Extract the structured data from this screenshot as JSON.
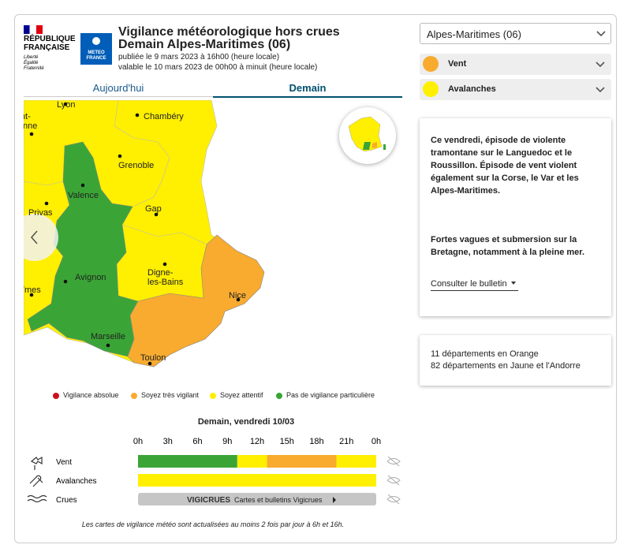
{
  "header": {
    "republique": [
      "RÉPUBLIQUE",
      "FRANÇAISE"
    ],
    "devise": [
      "Liberté",
      "Égalité",
      "Fraternité"
    ],
    "meteo": [
      "METEO",
      "FRANCE"
    ],
    "title": "Vigilance météorologique hors crues",
    "subtitle": "Demain Alpes-Maritimes (06)",
    "published": "publiée le 9 mars 2023 à 16h00 (heure locale)",
    "valid": "valable le 10 mars 2023 de 00h00 à minuit (heure locale)"
  },
  "tabs": {
    "items": [
      "Aujourd'hui",
      "Demain"
    ],
    "active": 1
  },
  "map": {
    "cities": [
      {
        "lines": [
          "Lyon"
        ]
      },
      {
        "lines": [
          "Saint-",
          "Étienne"
        ]
      },
      {
        "lines": [
          "Chambéry"
        ]
      },
      {
        "lines": [
          "Grenoble"
        ]
      },
      {
        "lines": [
          "Valence"
        ]
      },
      {
        "lines": [
          "Privas"
        ]
      },
      {
        "lines": [
          "Gap"
        ]
      },
      {
        "lines": [
          "Digne-",
          "les-Bains"
        ]
      },
      {
        "lines": [
          "Avignon"
        ]
      },
      {
        "lines": [
          "Nîmes"
        ]
      },
      {
        "lines": [
          "Nice"
        ]
      },
      {
        "lines": [
          "Marseille"
        ]
      },
      {
        "lines": [
          "Toulon"
        ]
      }
    ]
  },
  "legend": [
    {
      "label": "Vigilance absolue",
      "color": "#cc1020"
    },
    {
      "label": "Soyez très vigilant",
      "color": "#f8ab2f"
    },
    {
      "label": "Soyez attentif",
      "color": "#ffef00"
    },
    {
      "label": "Pas de vigilance particulière",
      "color": "#3aa536"
    }
  ],
  "timeline": {
    "title": "Demain, vendredi 10/03",
    "hour_range": [
      0,
      24
    ],
    "hours": [
      "0h",
      "3h",
      "6h",
      "9h",
      "12h",
      "15h",
      "18h",
      "21h",
      "0h"
    ],
    "rows": [
      {
        "label": "Vent",
        "segments": [
          {
            "from": 0,
            "to": 10,
            "color": "#3aa536"
          },
          {
            "from": 10,
            "to": 13,
            "color": "#ffef00"
          },
          {
            "from": 13,
            "to": 20,
            "color": "#f8ab2f"
          },
          {
            "from": 20,
            "to": 24,
            "color": "#ffef00"
          }
        ]
      },
      {
        "label": "Avalanches",
        "segments": [
          {
            "from": 0,
            "to": 24,
            "color": "#ffef00"
          }
        ]
      }
    ],
    "crues": {
      "label": "Crues",
      "logo": "VIGICRUES",
      "text": "Cartes et bulletins Vigicrues"
    }
  },
  "sidebar": {
    "department": "Alpes-Maritimes (06)",
    "phenomena": [
      {
        "label": "Vent",
        "color": "#f8ab2f"
      },
      {
        "label": "Avalanches",
        "color": "#ffef00"
      }
    ],
    "bulletin": {
      "paragraphs": [
        "Ce vendredi, épisode de violente tramontane sur le Languedoc et le Roussillon. Épisode de vent violent également sur la Corse, le Var et les Alpes-Maritimes.",
        "Fortes vagues et submersion sur la Bretagne, notamment à la pleine mer."
      ],
      "link": "Consulter le bulletin"
    },
    "counts": [
      "11 départements en Orange",
      "82 départements en Jaune et l'Andorre"
    ]
  },
  "footnote": "Les cartes de vigilance météo sont actualisées au moins 2 fois par jour à 6h et 16h."
}
